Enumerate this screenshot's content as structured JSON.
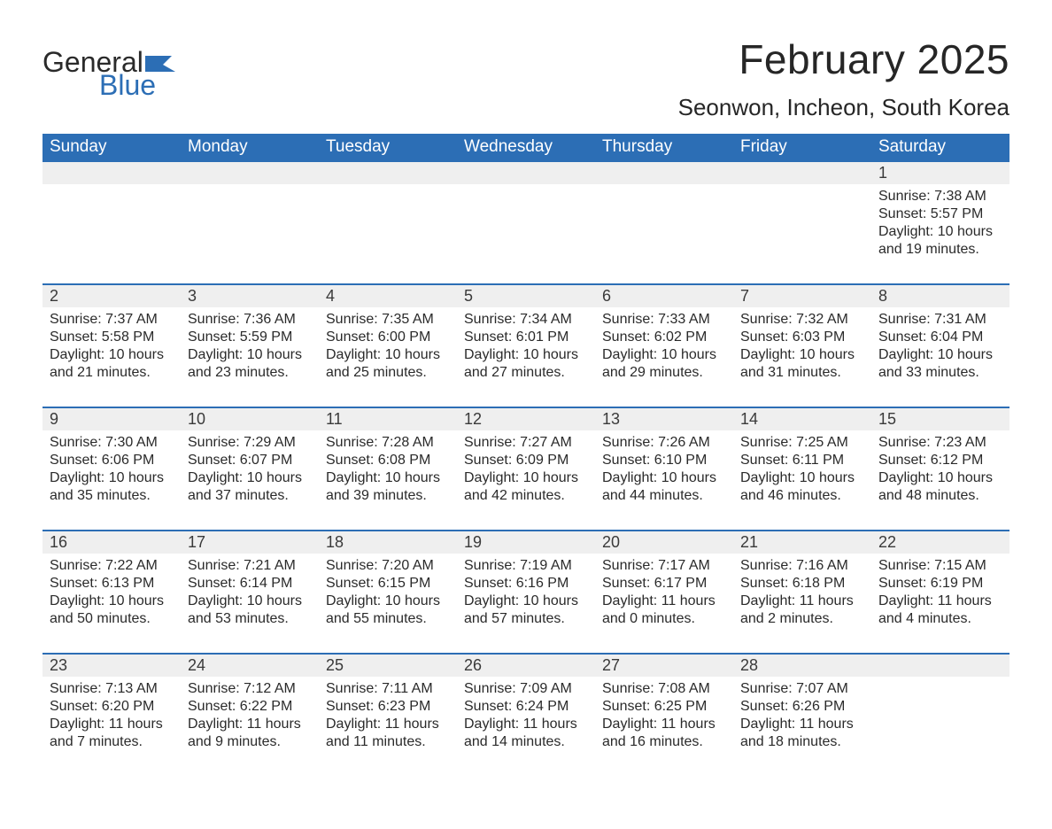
{
  "brand": {
    "word1": "General",
    "word2": "Blue",
    "brand_color": "#2c6eb5"
  },
  "title": {
    "month": "February 2025",
    "location": "Seonwon, Incheon, South Korea"
  },
  "colors": {
    "header_bg": "#2c6eb5",
    "header_text": "#ffffff",
    "daynum_bg": "#efefef",
    "row_border": "#2c6eb5",
    "body_bg": "#ffffff",
    "text": "#2a2a2a"
  },
  "fonts": {
    "title_pt": 46,
    "location_pt": 26,
    "th_pt": 19,
    "daynum_pt": 18,
    "body_pt": 16
  },
  "weekdays": [
    "Sunday",
    "Monday",
    "Tuesday",
    "Wednesday",
    "Thursday",
    "Friday",
    "Saturday"
  ],
  "labels": {
    "sunrise": "Sunrise:",
    "sunset": "Sunset:",
    "daylight": "Daylight:"
  },
  "weeks": [
    [
      null,
      null,
      null,
      null,
      null,
      null,
      {
        "d": "1",
        "sr": "7:38 AM",
        "ss": "5:57 PM",
        "dh": "10",
        "dm": "19"
      }
    ],
    [
      {
        "d": "2",
        "sr": "7:37 AM",
        "ss": "5:58 PM",
        "dh": "10",
        "dm": "21"
      },
      {
        "d": "3",
        "sr": "7:36 AM",
        "ss": "5:59 PM",
        "dh": "10",
        "dm": "23"
      },
      {
        "d": "4",
        "sr": "7:35 AM",
        "ss": "6:00 PM",
        "dh": "10",
        "dm": "25"
      },
      {
        "d": "5",
        "sr": "7:34 AM",
        "ss": "6:01 PM",
        "dh": "10",
        "dm": "27"
      },
      {
        "d": "6",
        "sr": "7:33 AM",
        "ss": "6:02 PM",
        "dh": "10",
        "dm": "29"
      },
      {
        "d": "7",
        "sr": "7:32 AM",
        "ss": "6:03 PM",
        "dh": "10",
        "dm": "31"
      },
      {
        "d": "8",
        "sr": "7:31 AM",
        "ss": "6:04 PM",
        "dh": "10",
        "dm": "33"
      }
    ],
    [
      {
        "d": "9",
        "sr": "7:30 AM",
        "ss": "6:06 PM",
        "dh": "10",
        "dm": "35"
      },
      {
        "d": "10",
        "sr": "7:29 AM",
        "ss": "6:07 PM",
        "dh": "10",
        "dm": "37"
      },
      {
        "d": "11",
        "sr": "7:28 AM",
        "ss": "6:08 PM",
        "dh": "10",
        "dm": "39"
      },
      {
        "d": "12",
        "sr": "7:27 AM",
        "ss": "6:09 PM",
        "dh": "10",
        "dm": "42"
      },
      {
        "d": "13",
        "sr": "7:26 AM",
        "ss": "6:10 PM",
        "dh": "10",
        "dm": "44"
      },
      {
        "d": "14",
        "sr": "7:25 AM",
        "ss": "6:11 PM",
        "dh": "10",
        "dm": "46"
      },
      {
        "d": "15",
        "sr": "7:23 AM",
        "ss": "6:12 PM",
        "dh": "10",
        "dm": "48"
      }
    ],
    [
      {
        "d": "16",
        "sr": "7:22 AM",
        "ss": "6:13 PM",
        "dh": "10",
        "dm": "50"
      },
      {
        "d": "17",
        "sr": "7:21 AM",
        "ss": "6:14 PM",
        "dh": "10",
        "dm": "53"
      },
      {
        "d": "18",
        "sr": "7:20 AM",
        "ss": "6:15 PM",
        "dh": "10",
        "dm": "55"
      },
      {
        "d": "19",
        "sr": "7:19 AM",
        "ss": "6:16 PM",
        "dh": "10",
        "dm": "57"
      },
      {
        "d": "20",
        "sr": "7:17 AM",
        "ss": "6:17 PM",
        "dh": "11",
        "dm": "0"
      },
      {
        "d": "21",
        "sr": "7:16 AM",
        "ss": "6:18 PM",
        "dh": "11",
        "dm": "2"
      },
      {
        "d": "22",
        "sr": "7:15 AM",
        "ss": "6:19 PM",
        "dh": "11",
        "dm": "4"
      }
    ],
    [
      {
        "d": "23",
        "sr": "7:13 AM",
        "ss": "6:20 PM",
        "dh": "11",
        "dm": "7"
      },
      {
        "d": "24",
        "sr": "7:12 AM",
        "ss": "6:22 PM",
        "dh": "11",
        "dm": "9"
      },
      {
        "d": "25",
        "sr": "7:11 AM",
        "ss": "6:23 PM",
        "dh": "11",
        "dm": "11"
      },
      {
        "d": "26",
        "sr": "7:09 AM",
        "ss": "6:24 PM",
        "dh": "11",
        "dm": "14"
      },
      {
        "d": "27",
        "sr": "7:08 AM",
        "ss": "6:25 PM",
        "dh": "11",
        "dm": "16"
      },
      {
        "d": "28",
        "sr": "7:07 AM",
        "ss": "6:26 PM",
        "dh": "11",
        "dm": "18"
      },
      null
    ]
  ]
}
